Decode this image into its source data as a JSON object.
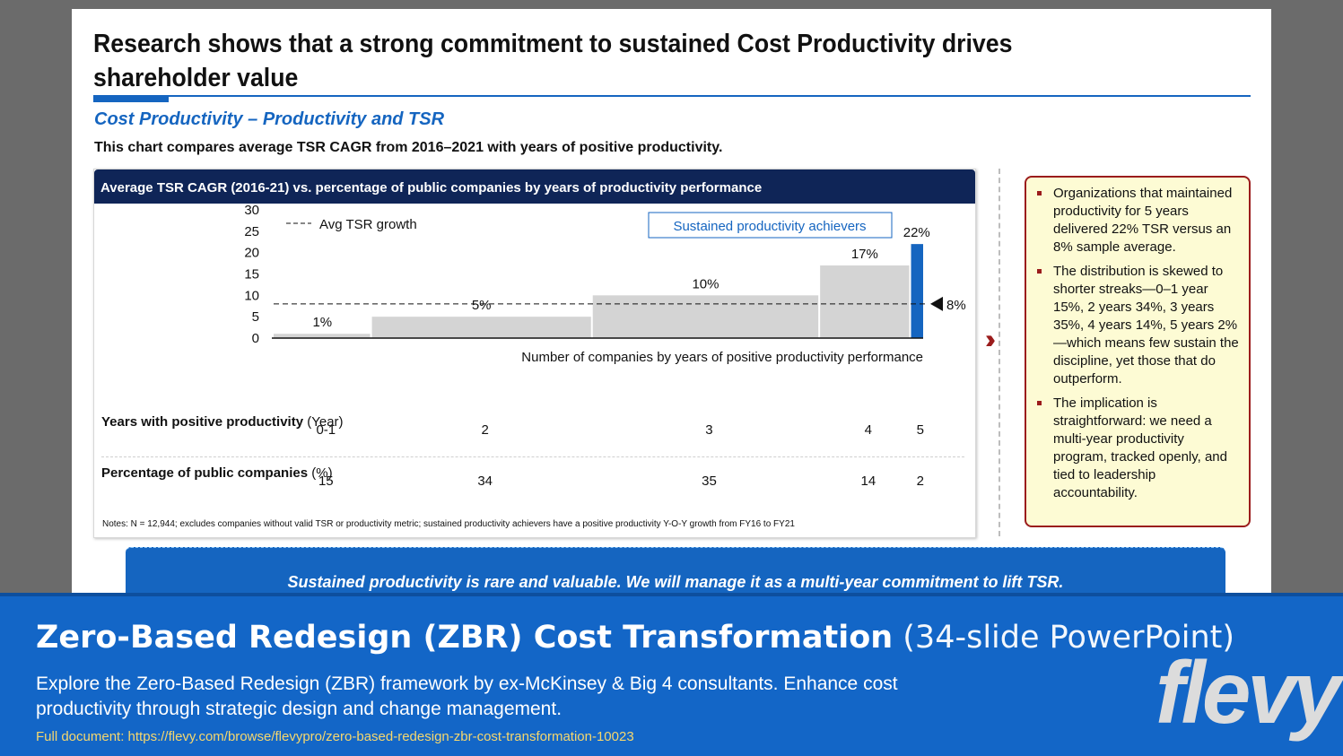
{
  "slide": {
    "title": "Research shows that a strong commitment to sustained Cost Productivity drives shareholder value",
    "subtitle": "Cost Productivity – Productivity and TSR",
    "description": "This chart compares average TSR CAGR from 2016–2021 with years of positive productivity.",
    "chart_header": "Average TSR CAGR (2016-21) vs. percentage of public companies by years of productivity performance",
    "notes": "Notes: N = 12,944; excludes companies without valid TSR or productivity metric; sustained productivity achievers have a positive productivity Y-O-Y growth from FY16 to FY21",
    "table": {
      "row1_label_bold": "Years with positive productivity",
      "row1_label_unit": " (Year)",
      "row1_values": [
        "0-1",
        "2",
        "3",
        "4",
        "5"
      ],
      "row2_label_bold": "Percentage of public companies",
      "row2_label_unit": " (%)",
      "row2_values": [
        "15",
        "34",
        "35",
        "14",
        "2"
      ]
    },
    "callout": [
      "Organizations that maintained productivity for 5 years delivered 22% TSR versus an 8% sample average.",
      "The distribution is skewed to shorter streaks—0–1 year 15%, 2 years 34%, 3 years 35%, 4 years 14%, 5 years 2%—which means few sustain the discipline, yet those that do outperform.",
      "The implication is straightforward: we need a multi-year productivity program, tracked openly, and tied to leadership accountability."
    ],
    "conclusion": "Sustained productivity is rare and valuable. We will manage it as a multi-year commitment to lift TSR."
  },
  "chart_data": {
    "type": "bar",
    "chart_style": "variable-width (marimekko) bars; bar width proportional to percentage of companies",
    "categories": [
      "0-1",
      "2",
      "3",
      "4",
      "5"
    ],
    "values": [
      1,
      5,
      10,
      17,
      22
    ],
    "value_labels": [
      "1%",
      "5%",
      "10%",
      "17%",
      "22%"
    ],
    "widths_pct": [
      15,
      34,
      35,
      14,
      2
    ],
    "bar_colors": [
      "#d4d4d4",
      "#d4d4d4",
      "#d4d4d4",
      "#d4d4d4",
      "#1565c0"
    ],
    "ylim": [
      0,
      30
    ],
    "yticks": [
      0,
      5,
      10,
      15,
      20,
      25,
      30
    ],
    "xlabel": "Number of companies by years of positive productivity performance",
    "ylabel": "",
    "reference_line": {
      "value": 8,
      "label": "8%",
      "legend": "Avg TSR growth"
    },
    "annotation": "Sustained productivity achievers"
  },
  "banner": {
    "title_bold": "Zero-Based Redesign (ZBR) Cost Transformation",
    "title_light": " (34-slide PowerPoint)",
    "description": "Explore the Zero-Based Redesign (ZBR) framework by ex-McKinsey & Big 4 consultants. Enhance cost productivity through strategic design and change management.",
    "link": "Full document: https://flevy.com/browse/flevypro/zero-based-redesign-zbr-cost-transformation-10023",
    "logo": "flevy"
  }
}
